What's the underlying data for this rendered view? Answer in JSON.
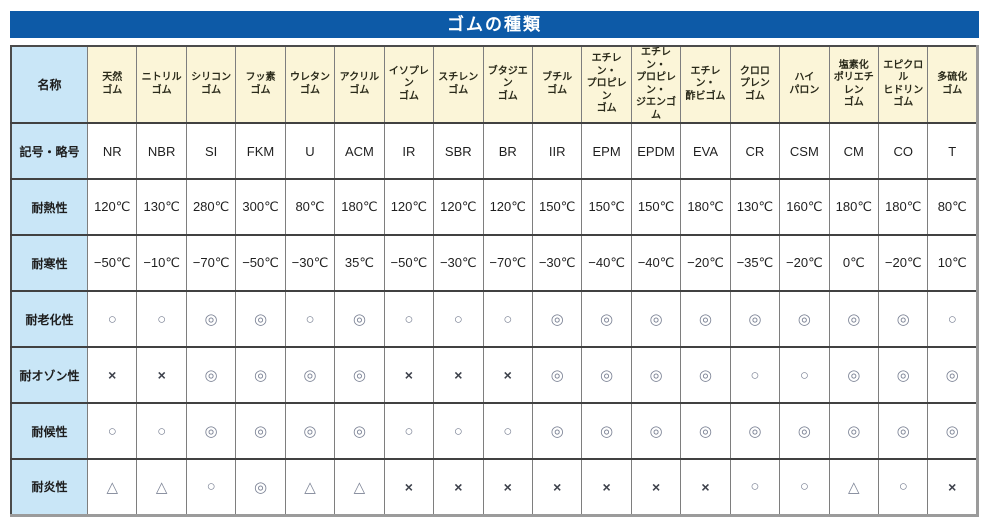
{
  "title": "ゴムの種類",
  "table": {
    "corner_label": "名称",
    "columns": [
      "天然\nゴム",
      "ニトリル\nゴム",
      "シリコン\nゴム",
      "フッ素\nゴム",
      "ウレタン\nゴム",
      "アクリル\nゴム",
      "イソプレン\nゴム",
      "スチレン\nゴム",
      "ブタジエン\nゴム",
      "ブチル\nゴム",
      "エチレン・\nプロピレン\nゴム",
      "エチレン・\nプロピレン・\nジエンゴム",
      "エチレン・\n酢ビゴム",
      "クロロ\nプレン\nゴム",
      "ハイ\nパロン",
      "塩素化\nポリエチレン\nゴム",
      "エピクロル\nヒドリン\nゴム",
      "多硫化\nゴム"
    ],
    "rows": [
      {
        "label": "記号・略号",
        "kind": "text",
        "cells": [
          "NR",
          "NBR",
          "SI",
          "FKM",
          "U",
          "ACM",
          "IR",
          "SBR",
          "BR",
          "IIR",
          "EPM",
          "EPDM",
          "EVA",
          "CR",
          "CSM",
          "CM",
          "CO",
          "T"
        ]
      },
      {
        "label": "耐熱性",
        "kind": "text",
        "cells": [
          "120℃",
          "130℃",
          "280℃",
          "300℃",
          "80℃",
          "180℃",
          "120℃",
          "120℃",
          "120℃",
          "150℃",
          "150℃",
          "150℃",
          "180℃",
          "130℃",
          "160℃",
          "180℃",
          "180℃",
          "80℃"
        ]
      },
      {
        "label": "耐寒性",
        "kind": "text",
        "cells": [
          "−50℃",
          "−10℃",
          "−70℃",
          "−50℃",
          "−30℃",
          "35℃",
          "−50℃",
          "−30℃",
          "−70℃",
          "−30℃",
          "−40℃",
          "−40℃",
          "−20℃",
          "−35℃",
          "−20℃",
          "0℃",
          "−20℃",
          "10℃"
        ]
      },
      {
        "label": "耐老化性",
        "kind": "mark",
        "cells": [
          "○",
          "○",
          "◎",
          "◎",
          "○",
          "◎",
          "○",
          "○",
          "○",
          "◎",
          "◎",
          "◎",
          "◎",
          "◎",
          "◎",
          "◎",
          "◎",
          "○"
        ]
      },
      {
        "label": "耐オゾン性",
        "kind": "mark",
        "cells": [
          "×",
          "×",
          "◎",
          "◎",
          "◎",
          "◎",
          "×",
          "×",
          "×",
          "◎",
          "◎",
          "◎",
          "◎",
          "○",
          "○",
          "◎",
          "◎",
          "◎"
        ]
      },
      {
        "label": "耐候性",
        "kind": "mark",
        "cells": [
          "○",
          "○",
          "◎",
          "◎",
          "◎",
          "◎",
          "○",
          "○",
          "○",
          "◎",
          "◎",
          "◎",
          "◎",
          "◎",
          "◎",
          "◎",
          "◎",
          "◎"
        ]
      },
      {
        "label": "耐炎性",
        "kind": "mark",
        "cells": [
          "△",
          "△",
          "○",
          "◎",
          "△",
          "△",
          "×",
          "×",
          "×",
          "×",
          "×",
          "×",
          "×",
          "○",
          "○",
          "△",
          "○",
          "×"
        ]
      }
    ]
  },
  "colors": {
    "title_bar": "#0d5aa7",
    "header_bg": "#fbf5d8",
    "label_bg": "#c9e6f7",
    "grid_line": "#7e7e7e",
    "row_separator": "#414141"
  }
}
